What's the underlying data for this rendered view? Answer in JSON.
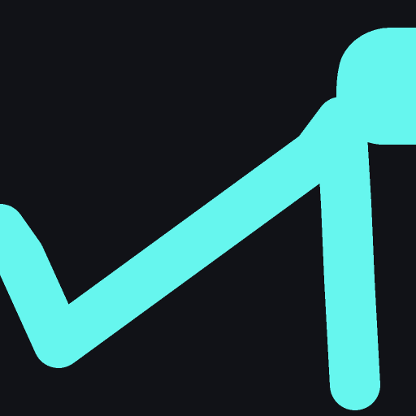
{
  "colors": {
    "background": "#111217",
    "stroke": "#66F6EE"
  }
}
